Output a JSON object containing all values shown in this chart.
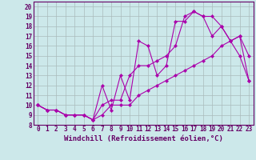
{
  "xlabel": "Windchill (Refroidissement éolien,°C)",
  "bg_color": "#cce8ea",
  "line_color": "#aa00aa",
  "grid_color": "#aabbbb",
  "xlim": [
    -0.5,
    23.5
  ],
  "ylim": [
    8,
    20.5
  ],
  "xticks": [
    0,
    1,
    2,
    3,
    4,
    5,
    6,
    7,
    8,
    9,
    10,
    11,
    12,
    13,
    14,
    15,
    16,
    17,
    18,
    19,
    20,
    21,
    22,
    23
  ],
  "yticks": [
    8,
    9,
    10,
    11,
    12,
    13,
    14,
    15,
    16,
    17,
    18,
    19,
    20
  ],
  "line1_x": [
    0,
    1,
    2,
    3,
    4,
    5,
    6,
    7,
    8,
    9,
    10,
    11,
    12,
    13,
    14,
    15,
    16,
    17,
    18,
    19,
    20,
    21,
    22,
    23
  ],
  "line1_y": [
    10,
    9.5,
    9.5,
    9,
    9,
    9,
    8.5,
    12,
    9.5,
    13,
    10.5,
    16.5,
    16,
    13,
    14,
    18.5,
    18.5,
    19.5,
    19,
    19,
    18,
    16.5,
    15,
    12.5
  ],
  "line2_x": [
    0,
    1,
    2,
    3,
    4,
    5,
    6,
    7,
    8,
    9,
    10,
    11,
    12,
    13,
    14,
    15,
    16,
    17,
    18,
    19,
    20,
    21,
    22,
    23
  ],
  "line2_y": [
    10,
    9.5,
    9.5,
    9,
    9,
    9,
    8.5,
    10,
    10.5,
    10.5,
    13,
    14,
    14,
    14.5,
    15,
    16,
    19,
    19.5,
    19,
    17,
    18,
    16.5,
    17,
    15
  ],
  "line3_x": [
    0,
    1,
    2,
    3,
    4,
    5,
    6,
    7,
    8,
    9,
    10,
    11,
    12,
    13,
    14,
    15,
    16,
    17,
    18,
    19,
    20,
    21,
    22,
    23
  ],
  "line3_y": [
    10,
    9.5,
    9.5,
    9,
    9,
    9,
    8.5,
    9,
    10,
    10,
    10,
    11,
    11.5,
    12,
    12.5,
    13,
    13.5,
    14,
    14.5,
    15,
    16,
    16.5,
    17,
    12.5
  ],
  "tick_fontsize": 5.5,
  "xlabel_fontsize": 6.5
}
